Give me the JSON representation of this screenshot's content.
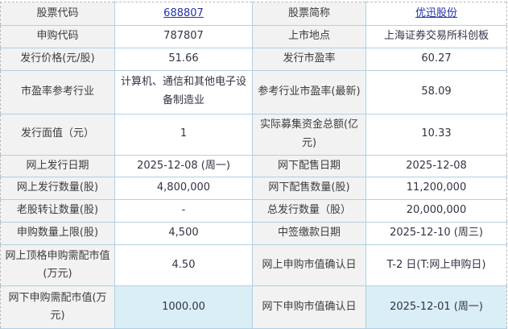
{
  "colors": {
    "link": "#2333a5",
    "label_bg": "#f2f2f2",
    "highlight_bg": "#d9eef5",
    "inner_border": "#b3cfe2",
    "outer_border_dashed": "#b9b9b9"
  },
  "table": {
    "rows": [
      {
        "l1": "股票代码",
        "v1": "688807",
        "l2": "股票简称",
        "v2": "优迅股份"
      },
      {
        "l1": "申购代码",
        "v1": "787807",
        "l2": "上市地点",
        "v2": "上海证券交易所科创板"
      },
      {
        "l1": "发行价格(元/股)",
        "v1": "51.66",
        "l2": "发行市盈率",
        "v2": "60.27"
      },
      {
        "l1": "市盈率参考行业",
        "v1": "计算机、通信和其他电子设备制造业",
        "l2": "参考行业市盈率(最新)",
        "v2": "58.09"
      },
      {
        "l1": "发行面值（元）",
        "v1": "1",
        "l2": "实际募集资金总额(亿元)",
        "v2": "10.33"
      },
      {
        "l1": "网上发行日期",
        "v1": "2025-12-08 (周一)",
        "l2": "网下配售日期",
        "v2": "2025-12-08"
      },
      {
        "l1": "网上发行数量(股)",
        "v1": "4,800,000",
        "l2": "网下配售数量(股)",
        "v2": "11,200,000"
      },
      {
        "l1": "老股转让数量(股)",
        "v1": "-",
        "l2": "总发行数量（股）",
        "v2": "20,000,000"
      },
      {
        "l1": "申购数量上限(股)",
        "v1": "4,500",
        "l2": "中签缴款日期",
        "v2": "2025-12-10 (周三)"
      },
      {
        "l1": "网上顶格申购需配市值(万元)",
        "v1": "4.50",
        "l2": "网上申购市值确认日",
        "v2": "T-2 日(T:网上申购日)"
      },
      {
        "l1": "网下申购需配市值(万元)",
        "v1": "1000.00",
        "l2": "网下申购市值确认日",
        "v2": "2025-12-01 (周一)"
      }
    ]
  }
}
